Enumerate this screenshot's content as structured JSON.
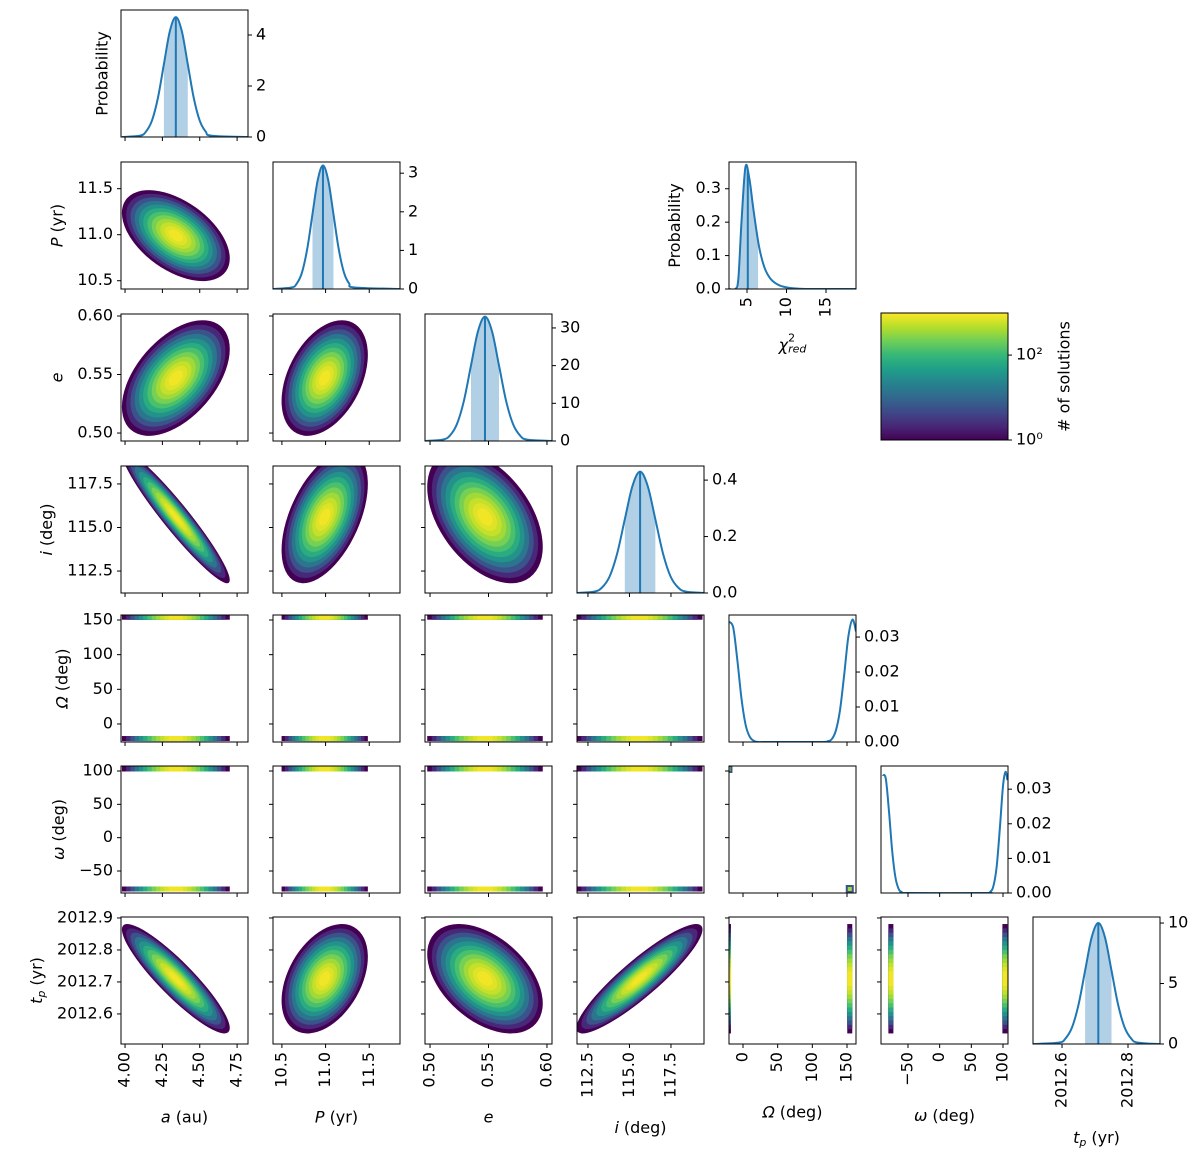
{
  "chart_data": {
    "type": "corner",
    "color": "#1f77b4",
    "y_label": "Probability",
    "params": [
      {
        "symbol": "a",
        "unit": "(au)",
        "xlim": [
          3.973,
          4.823
        ],
        "xticks": [
          {
            "value": 4,
            "label": "4.00"
          },
          4.25,
          {
            "value": 4.5,
            "label": "4.50"
          },
          4.75
        ],
        "mean": 4.34,
        "sd": 0.095,
        "density": {
          "x": [
            3.98,
            4.1,
            4.14,
            4.18,
            4.22,
            4.26,
            4.3,
            4.34,
            4.38,
            4.42,
            4.46,
            4.5,
            4.54,
            4.58,
            4.82
          ],
          "values": [
            0,
            0.05,
            0.21,
            0.64,
            1.53,
            2.85,
            4.15,
            4.7,
            4.15,
            2.85,
            1.53,
            0.64,
            0.21,
            0.05,
            0
          ],
          "ylim": [
            0,
            4.98
          ],
          "yticks": [
            0,
            2,
            4
          ],
          "median": 4.34,
          "interval": [
            4.26,
            4.42
          ]
        }
      },
      {
        "symbol": "P",
        "unit": "(yr)",
        "xlim": [
          10.398,
          11.852
        ],
        "xticks": [
          10.5,
          {
            "value": 11,
            "label": "11.0"
          },
          11.5
        ],
        "ylim": [
          10.41,
          11.79
        ],
        "yticks": [
          10.5,
          {
            "value": 11,
            "label": "11.0"
          },
          11.5
        ],
        "mean": 10.99,
        "sd": 0.13,
        "density": {
          "x": [
            10.4,
            10.61,
            10.67,
            10.73,
            10.79,
            10.85,
            10.91,
            10.97,
            11.03,
            11.09,
            11.15,
            11.21,
            11.27,
            11.33,
            11.85
          ],
          "values": [
            0,
            0.04,
            0.14,
            0.43,
            1.04,
            1.94,
            2.82,
            3.2,
            2.82,
            1.94,
            1.04,
            0.43,
            0.14,
            0.04,
            0
          ],
          "ylim": [
            0,
            3.29
          ],
          "yticks": [
            0,
            1,
            2,
            3
          ],
          "median": 10.97,
          "interval": [
            10.85,
            11.09
          ]
        }
      },
      {
        "symbol": "e",
        "xlim": [
          0.4957,
          0.6043
        ],
        "xticks": [
          {
            "value": 0.5,
            "label": "0.50"
          },
          0.55,
          {
            "value": 0.6,
            "label": "0.60"
          }
        ],
        "ylim": [
          0.4932,
          0.6017
        ],
        "yticks": [
          {
            "value": 0.5,
            "label": "0.50"
          },
          0.55,
          {
            "value": 0.6,
            "label": "0.60"
          }
        ],
        "mean": 0.547,
        "sd": 0.013,
        "density": {
          "x": [
            0.496,
            0.511,
            0.517,
            0.523,
            0.529,
            0.535,
            0.541,
            0.547,
            0.553,
            0.559,
            0.565,
            0.571,
            0.577,
            0.583,
            0.604
          ],
          "values": [
            0,
            0.37,
            1.45,
            4.47,
            10.7,
            20.0,
            29.1,
            33,
            29.1,
            20.0,
            10.7,
            4.47,
            1.45,
            0.37,
            0
          ],
          "ylim": [
            0,
            33.7
          ],
          "yticks": [
            0,
            10,
            20,
            30
          ],
          "median": 0.547,
          "interval": [
            0.535,
            0.559
          ]
        }
      },
      {
        "symbol": "i",
        "unit": "(deg)",
        "xlim": [
          111.84,
          119.49
        ],
        "xticks": [
          112.5,
          {
            "value": 115,
            "label": "115.0"
          },
          117.5
        ],
        "ylim": [
          111.24,
          118.53
        ],
        "yticks": [
          112.5,
          {
            "value": 115,
            "label": "115.0"
          },
          117.5
        ],
        "mean": 115.6,
        "sd": 1.0,
        "density": {
          "x": [
            111.84,
            112.88,
            113.34,
            113.8,
            114.26,
            114.72,
            115.18,
            115.64,
            116.1,
            116.56,
            117.02,
            117.48,
            117.94,
            118.4,
            119.49
          ],
          "values": [
            0,
            0.005,
            0.019,
            0.058,
            0.14,
            0.261,
            0.379,
            0.43,
            0.379,
            0.261,
            0.14,
            0.058,
            0.019,
            0.005,
            0
          ],
          "ylim": [
            0,
            0.45
          ],
          "yticks": [
            {
              "value": 0,
              "label": "0.0"
            },
            0.2,
            0.4
          ],
          "median": 115.64,
          "interval": [
            114.72,
            116.56
          ]
        }
      },
      {
        "symbol": "Ω",
        "unit": "(deg)",
        "xlim": [
          -20.2,
          163
        ],
        "xticks": [
          0,
          50,
          100,
          150
        ],
        "ylim": [
          -26,
          157.2
        ],
        "yticks": [
          0,
          50,
          100,
          150
        ],
        "modes": [
          -21,
          154
        ],
        "density": {
          "x": [
            -20,
            -14,
            -8,
            -2,
            4,
            10,
            16,
            22,
            34,
            110,
            122,
            128,
            134,
            140,
            146,
            152,
            158,
            163
          ],
          "values": [
            0.0344,
            0.0326,
            0.0231,
            0.0121,
            0.0047,
            0.0014,
            0.0003,
            0,
            0,
            0,
            0.0002,
            0.0008,
            0.0033,
            0.0092,
            0.0193,
            0.0302,
            0.035,
            0.0316
          ],
          "ylim": [
            0,
            0.0363
          ],
          "yticks": [
            {
              "value": 0,
              "label": "0.00"
            },
            0.01,
            0.02,
            0.03
          ]
        }
      },
      {
        "symbol": "ω",
        "unit": "(deg)",
        "xlim": [
          -92.6,
          107.9
        ],
        "xticks": [
          {
            "value": -50,
            "label": "−50"
          },
          0,
          50,
          100
        ],
        "ylim": [
          -83,
          107.5
        ],
        "yticks": [
          {
            "value": -50,
            "label": "−50"
          },
          0,
          50,
          100
        ],
        "modes": [
          -77,
          103
        ],
        "density": {
          "x": [
            -90,
            -85,
            -80,
            -75,
            -70,
            -65,
            -60,
            -50,
            70,
            80,
            85,
            90,
            95,
            100,
            104,
            107
          ],
          "values": [
            0.0341,
            0.033,
            0.0236,
            0.0123,
            0.0047,
            0.0013,
            0.0003,
            0,
            0,
            0.0004,
            0.0021,
            0.0076,
            0.0186,
            0.0309,
            0.035,
            0.0326
          ],
          "ylim": [
            0,
            0.0367
          ],
          "yticks": [
            {
              "value": 0,
              "label": "0.00"
            },
            0.01,
            0.02,
            0.03
          ]
        }
      },
      {
        "symbol": "t",
        "subscript": "p",
        "unit": "(yr)",
        "xlim": [
          2012.512,
          2012.897
        ],
        "xticks": [
          2012.6,
          2012.8
        ],
        "ylim": [
          2012.506,
          2012.903
        ],
        "yticks": [
          2012.6,
          2012.7,
          2012.8,
          2012.9
        ],
        "mean": 2012.71,
        "sd": 0.045,
        "density": {
          "x": [
            2012.512,
            2012.59,
            2012.61,
            2012.63,
            2012.65,
            2012.67,
            2012.69,
            2012.71,
            2012.73,
            2012.75,
            2012.77,
            2012.79,
            2012.81,
            2012.83,
            2012.897
          ],
          "values": [
            0,
            0.11,
            0.44,
            1.35,
            3.25,
            6.07,
            8.83,
            10,
            8.83,
            6.07,
            3.25,
            1.35,
            0.44,
            0.11,
            0
          ],
          "ylim": [
            0,
            10.5
          ],
          "yticks": [
            0,
            5,
            10
          ],
          "median": 2012.71,
          "interval": [
            2012.67,
            2012.75
          ]
        }
      }
    ],
    "correlations": [
      [
        -0.5
      ],
      [
        0.5,
        0.4
      ],
      [
        -0.95,
        0.5,
        -0.45
      ],
      [
        null,
        null,
        null,
        null
      ],
      [
        null,
        null,
        null,
        null,
        -1
      ],
      [
        -0.9,
        0.4,
        -0.45,
        0.9,
        null,
        null
      ]
    ],
    "chi2": {
      "symbol": "χ",
      "superscript": "2",
      "subscript": "red",
      "xlim": [
        2.72,
        18.8
      ],
      "xticks": [
        5,
        10,
        15
      ],
      "density": {
        "x": [
          2.72,
          3.5,
          3.9,
          4.3,
          4.8,
          5.3,
          5.8,
          6.5,
          7.2,
          8,
          9,
          10,
          11,
          13,
          18.8
        ],
        "values": [
          0,
          0,
          0.03,
          0.2,
          0.365,
          0.33,
          0.24,
          0.13,
          0.065,
          0.03,
          0.012,
          0.005,
          0.002,
          0,
          0
        ],
        "ylim": [
          0,
          0.38
        ],
        "yticks": [
          {
            "value": 0,
            "label": "0.0"
          },
          0.1,
          0.2,
          0.3
        ],
        "median": 5.1,
        "interval": [
          3.9,
          6.4
        ]
      }
    },
    "colorbar": {
      "label": "# of solutions",
      "log": true,
      "clim": [
        1,
        980
      ],
      "ticks": [
        {
          "value": 1,
          "label": "10⁰"
        },
        {
          "value": 100,
          "label": "10²"
        }
      ],
      "colormap": [
        "#440154",
        "#482878",
        "#3e4989",
        "#31688e",
        "#26828e",
        "#1f9e89",
        "#35b779",
        "#6ece58",
        "#b5de2b",
        "#fde725"
      ]
    }
  }
}
